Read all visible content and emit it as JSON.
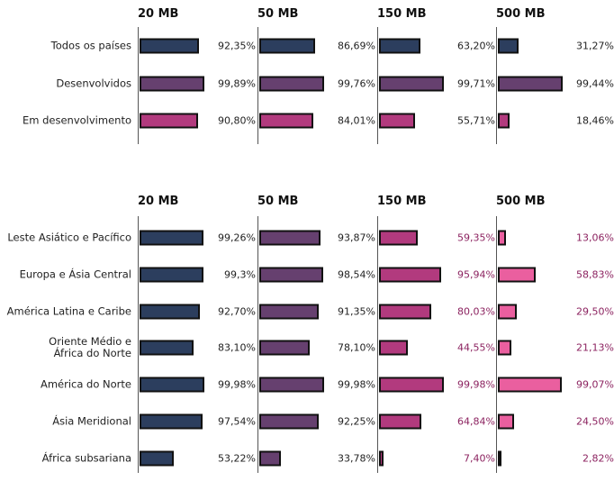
{
  "chart_data": [
    {
      "type": "bar",
      "orientation": "horizontal",
      "xlim": [
        0,
        100
      ],
      "categories": [
        "Todos os países",
        "Desenvolvidos",
        "Em desenvolvimento"
      ],
      "colors": [
        "#2c3e5e",
        "#66406f",
        "#b23a7e"
      ],
      "panels": [
        {
          "title": "20 MB",
          "values": [
            92.35,
            99.89,
            90.8
          ],
          "value_labels": [
            "92,35%",
            "99,89%",
            "90,80%"
          ]
        },
        {
          "title": "50 MB",
          "values": [
            86.69,
            99.76,
            84.01
          ],
          "value_labels": [
            "86,69%",
            "99,76%",
            "84,01%"
          ]
        },
        {
          "title": "150 MB",
          "values": [
            63.2,
            99.71,
            55.71
          ],
          "value_labels": [
            "63,20%",
            "99,71%",
            "55,71%"
          ]
        },
        {
          "title": "500 MB",
          "values": [
            31.27,
            99.44,
            18.46
          ],
          "value_labels": [
            "31,27%",
            "99,44%",
            "18,46%"
          ]
        }
      ]
    },
    {
      "type": "bar",
      "orientation": "horizontal",
      "xlim": [
        0,
        100
      ],
      "categories": [
        "Leste Asiático e Pacífico",
        "Europa e Ásia Central",
        "América Latina e Caribe",
        "Oriente Médio e\nÁfrica do Norte",
        "América do Norte",
        "Ásia Meridional",
        "África subsariana"
      ],
      "panels": [
        {
          "title": "20 MB",
          "color": "#2c3e5e",
          "values": [
            99.26,
            99.3,
            92.7,
            83.1,
            99.98,
            97.54,
            53.22
          ],
          "value_labels": [
            "99,26%",
            "99,3%",
            "92,70%",
            "83,10%",
            "99,98%",
            "97,54%",
            "53,22%"
          ]
        },
        {
          "title": "50 MB",
          "color": "#66406f",
          "values": [
            93.87,
            98.54,
            91.35,
            78.1,
            99.98,
            92.25,
            33.78
          ],
          "value_labels": [
            "93,87%",
            "98,54%",
            "91,35%",
            "78,10%",
            "99,98%",
            "92,25%",
            "33,78%"
          ]
        },
        {
          "title": "150 MB",
          "color": "#b23a7e",
          "label_color": "#8c2360",
          "values": [
            59.35,
            95.94,
            80.03,
            44.55,
            99.98,
            64.84,
            7.4
          ],
          "value_labels": [
            "59,35%",
            "95,94%",
            "80,03%",
            "44,55%",
            "99,98%",
            "64,84%",
            "7,40%"
          ]
        },
        {
          "title": "500 MB",
          "color": "#ea5f9f",
          "label_color": "#8c2360",
          "values": [
            13.06,
            58.83,
            29.5,
            21.13,
            99.07,
            24.5,
            2.82
          ],
          "value_labels": [
            "13,06%",
            "58,83%",
            "29,50%",
            "21,13%",
            "99,07%",
            "24,50%",
            "2,82%"
          ]
        }
      ]
    }
  ]
}
